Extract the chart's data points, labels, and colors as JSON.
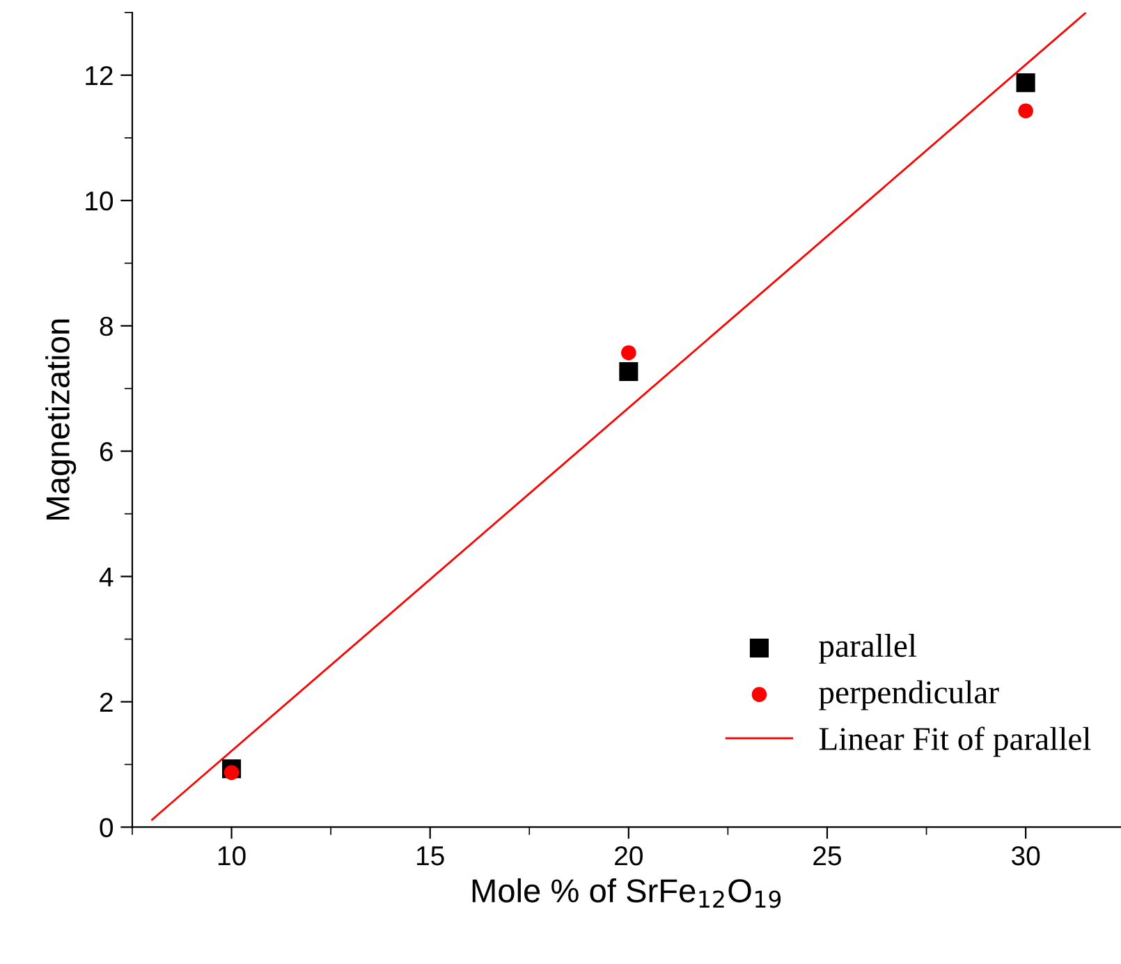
{
  "chart_data": {
    "type": "scatter",
    "xlabel": "Mole % of SrFe$_{12}$O$_{19}$",
    "ylabel": "Magnetization",
    "xlim": [
      7.5,
      32.4
    ],
    "ylim": [
      0,
      13
    ],
    "xticks": [
      10,
      15,
      20,
      25,
      30
    ],
    "yticks": [
      0,
      2,
      4,
      6,
      8,
      10,
      12
    ],
    "grid": false,
    "legend": "bottom right",
    "series": [
      {
        "name": "parallel",
        "color": "#000000",
        "marker": "square",
        "x": [
          10,
          20,
          30
        ],
        "values": [
          0.93,
          7.27,
          11.88
        ]
      },
      {
        "name": "perpendicular",
        "color": "#ff0000",
        "marker": "circle",
        "x": [
          10,
          20,
          30
        ],
        "values": [
          0.87,
          7.57,
          11.43
        ]
      },
      {
        "name": "Linear Fit of parallel",
        "type": "line",
        "color": "#ff0000",
        "marker": "none",
        "line_style": "solid",
        "x": [
          8,
          31.5
        ],
        "values": [
          0.12,
          12.99
        ]
      }
    ]
  }
}
